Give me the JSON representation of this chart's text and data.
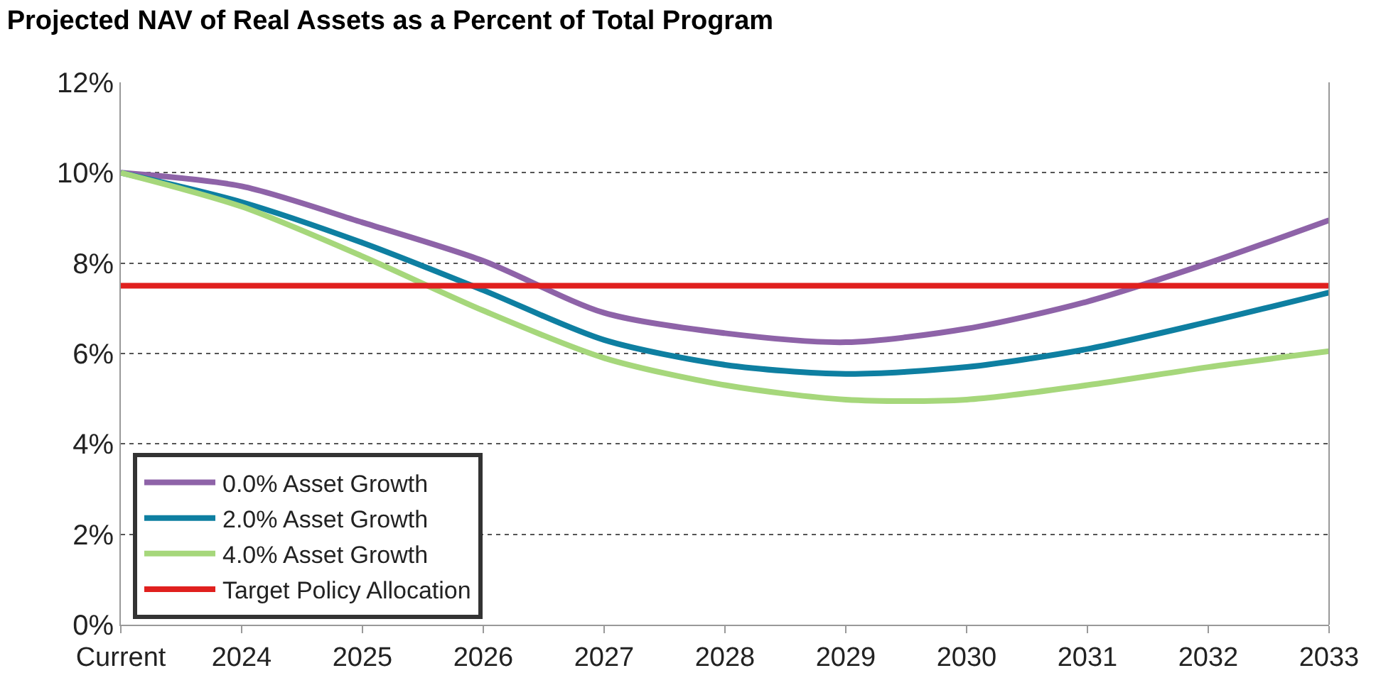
{
  "chart_data": {
    "type": "line",
    "title": "Projected NAV of Real Assets as a Percent of Total Program",
    "categories": [
      "Current",
      "2024",
      "2025",
      "2026",
      "2027",
      "2028",
      "2029",
      "2030",
      "2031",
      "2032",
      "2033"
    ],
    "series": [
      {
        "name": "0.0% Asset Growth",
        "color": "#8e63a8",
        "values": [
          10,
          9.7,
          8.9,
          8.05,
          6.9,
          6.45,
          6.25,
          6.55,
          7.15,
          8.0,
          8.95
        ]
      },
      {
        "name": "2.0% Asset Growth",
        "color": "#0e7fa1",
        "values": [
          10,
          9.35,
          8.45,
          7.4,
          6.3,
          5.75,
          5.55,
          5.7,
          6.1,
          6.7,
          7.35
        ]
      },
      {
        "name": "4.0% Asset Growth",
        "color": "#a6d77b",
        "values": [
          10,
          9.25,
          8.15,
          6.95,
          5.9,
          5.3,
          4.98,
          4.98,
          5.3,
          5.7,
          6.05
        ]
      },
      {
        "name": "Target Policy Allocation",
        "color": "#e0201e",
        "values": [
          7.5,
          7.5,
          7.5,
          7.5,
          7.5,
          7.5,
          7.5,
          7.5,
          7.5,
          7.5,
          7.5
        ]
      }
    ],
    "ylim": [
      0,
      12
    ],
    "yticks": [
      {
        "value": 0,
        "label": "0%"
      },
      {
        "value": 2,
        "label": "2%"
      },
      {
        "value": 4,
        "label": "4%"
      },
      {
        "value": 6,
        "label": "6%"
      },
      {
        "value": 8,
        "label": "8%"
      },
      {
        "value": 10,
        "label": "10%"
      },
      {
        "value": 12,
        "label": "12%"
      }
    ],
    "grid": "y",
    "legend": "bottom left",
    "marker": "none",
    "line_style": "solid"
  }
}
